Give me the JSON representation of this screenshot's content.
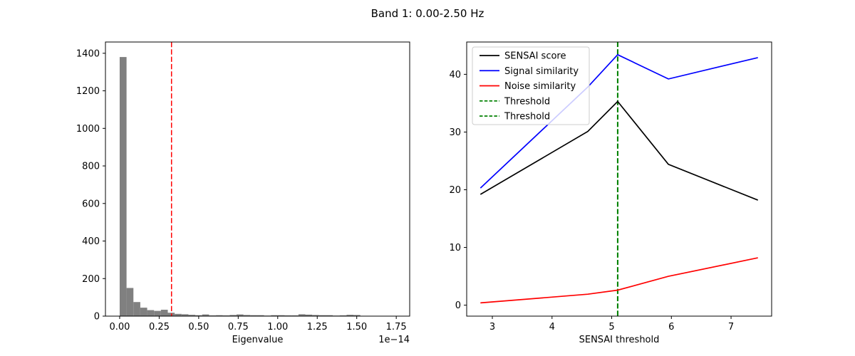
{
  "figure": {
    "title": "Band 1: 0.00-2.50 Hz",
    "background": "#ffffff"
  },
  "colors": {
    "histogram_bar": "#808080",
    "hist_threshold_line": "#ff0000",
    "sensai_score_line": "#000000",
    "signal_similarity_line": "#0000ff",
    "noise_similarity_line": "#ff0000",
    "threshold_line": "#008000",
    "axis": "#000000",
    "legend_border": "#cccccc"
  },
  "chart_data": [
    {
      "id": "eigenvalue-histogram",
      "type": "bar",
      "title": "",
      "xlabel": "Eigenvalue",
      "ylabel": "",
      "x_unit": "1e-14",
      "x_scale_offset_label": "1e−14",
      "bar_color": "#808080",
      "bin_start": 0,
      "bin_width": 0.0435,
      "values": [
        1380,
        150,
        75,
        45,
        32,
        28,
        34,
        18,
        12,
        10,
        7,
        5,
        9,
        4,
        5,
        4,
        6,
        9,
        6,
        5,
        5,
        3,
        5,
        5,
        4,
        4,
        10,
        8,
        6,
        5,
        5,
        3,
        4,
        7,
        6,
        0,
        0,
        0,
        0,
        1
      ],
      "vlines": [
        {
          "x": 0.328,
          "color": "#ff0000",
          "style": "dashed",
          "label": ""
        }
      ],
      "xtick_values": [
        0.0,
        0.25,
        0.5,
        0.75,
        1.0,
        1.25,
        1.5,
        1.75
      ],
      "xtick_labels": [
        "0.00",
        "0.25",
        "0.50",
        "0.75",
        "1.00",
        "1.25",
        "1.50",
        "1.75"
      ],
      "ytick_values": [
        0,
        200,
        400,
        600,
        800,
        1000,
        1200,
        1400
      ],
      "ytick_labels": [
        "0",
        "200",
        "400",
        "600",
        "800",
        "1000",
        "1200",
        "1400"
      ],
      "xlim": [
        -0.09,
        1.835
      ],
      "ylim": [
        0,
        1460
      ],
      "grid": false,
      "legend": null
    },
    {
      "id": "sensai-threshold-plot",
      "type": "line",
      "title": "",
      "xlabel": "SENSAI threshold",
      "ylabel": "",
      "x": [
        2.8,
        4.6,
        5.1,
        5.95,
        7.45
      ],
      "series": [
        {
          "name": "SENSAI score",
          "color": "#000000",
          "style": "solid",
          "values": [
            19.2,
            30.1,
            35.3,
            24.4,
            18.2
          ]
        },
        {
          "name": "Signal similarity",
          "color": "#0000ff",
          "style": "solid",
          "values": [
            20.3,
            37.8,
            43.4,
            39.2,
            42.9
          ]
        },
        {
          "name": "Noise similarity",
          "color": "#ff0000",
          "style": "solid",
          "values": [
            0.4,
            1.9,
            2.6,
            5.0,
            8.2
          ]
        }
      ],
      "vlines": [
        {
          "x": 5.1,
          "color": "#008000",
          "style": "dashed",
          "label": "Threshold"
        },
        {
          "x": 5.1,
          "color": "#008000",
          "style": "dashed",
          "label": "Threshold"
        }
      ],
      "legend": {
        "position": "upper-left",
        "entries": [
          "SENSAI score",
          "Signal similarity",
          "Noise similarity",
          "Threshold",
          "Threshold"
        ]
      },
      "xtick_values": [
        3,
        4,
        5,
        6,
        7
      ],
      "xtick_labels": [
        "3",
        "4",
        "5",
        "6",
        "7"
      ],
      "ytick_values": [
        0,
        10,
        20,
        30,
        40
      ],
      "ytick_labels": [
        "0",
        "10",
        "20",
        "30",
        "40"
      ],
      "xlim": [
        2.57,
        7.68
      ],
      "ylim": [
        -1.9,
        45.6
      ],
      "grid": false
    }
  ]
}
